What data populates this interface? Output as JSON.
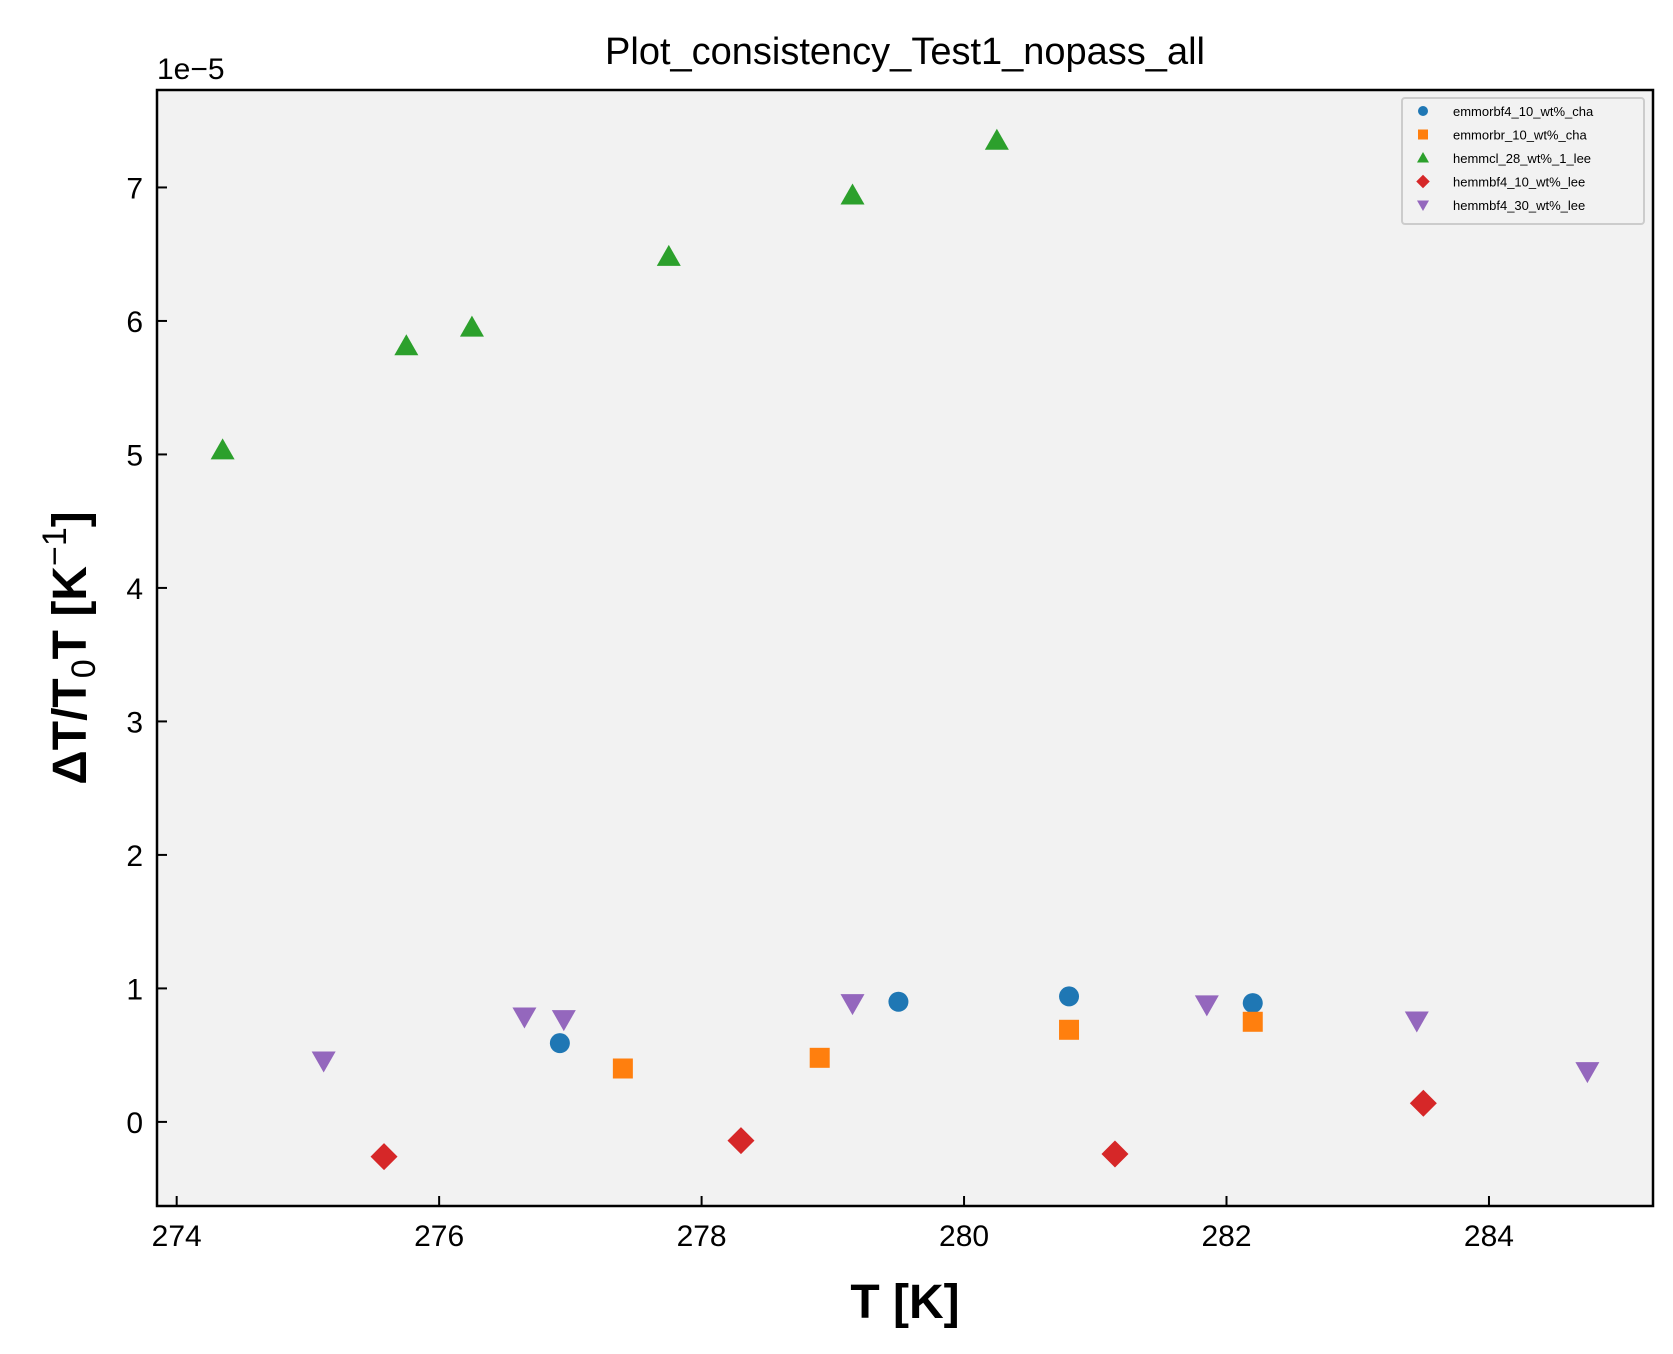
{
  "chart_data": {
    "type": "scatter",
    "title": "Plot_consistency_Test1_nopass_all",
    "xlabel": "T [K]",
    "ylabel_main": "ΔT/T",
    "ylabel_sub": "0",
    "ylabel_rest": "T [K",
    "ylabel_sup": "−1",
    "ylabel_end": "]",
    "y_offset_label": "1e−5",
    "xlim": [
      273.85,
      285.25
    ],
    "ylim": [
      -0.63,
      7.73
    ],
    "xticks": [
      274,
      276,
      278,
      280,
      282,
      284
    ],
    "yticks": [
      0,
      1,
      2,
      3,
      4,
      5,
      6,
      7
    ],
    "grid": false,
    "legend_position": "top-right",
    "background": "#f2f2f2",
    "series": [
      {
        "name": "emmorbf4_10_wt%_cha",
        "marker": "circle",
        "color": "#1f77b4",
        "points": [
          [
            276.92,
            0.59
          ],
          [
            279.5,
            0.9
          ],
          [
            280.8,
            0.94
          ],
          [
            282.2,
            0.89
          ]
        ]
      },
      {
        "name": "emmorbr_10_wt%_cha",
        "marker": "square",
        "color": "#ff7f0e",
        "points": [
          [
            277.4,
            0.4
          ],
          [
            278.9,
            0.48
          ],
          [
            280.8,
            0.69
          ],
          [
            282.2,
            0.75
          ]
        ]
      },
      {
        "name": "hemmcl_28_wt%_1_lee",
        "marker": "triangle-up",
        "color": "#2ca02c",
        "points": [
          [
            274.35,
            5.03
          ],
          [
            275.75,
            5.81
          ],
          [
            276.25,
            5.95
          ],
          [
            277.75,
            6.48
          ],
          [
            279.15,
            6.94
          ],
          [
            280.25,
            7.35
          ]
        ]
      },
      {
        "name": "hemmbf4_10_wt%_lee",
        "marker": "diamond",
        "color": "#d62728",
        "points": [
          [
            275.58,
            -0.26
          ],
          [
            278.3,
            -0.14
          ],
          [
            281.15,
            -0.24
          ],
          [
            283.5,
            0.14
          ]
        ]
      },
      {
        "name": "hemmbf4_30_wt%_lee",
        "marker": "triangle-down",
        "color": "#9467bd",
        "points": [
          [
            275.12,
            0.46
          ],
          [
            276.65,
            0.79
          ],
          [
            276.95,
            0.77
          ],
          [
            279.15,
            0.89
          ],
          [
            281.85,
            0.88
          ],
          [
            283.45,
            0.76
          ],
          [
            284.75,
            0.38
          ]
        ]
      }
    ]
  }
}
